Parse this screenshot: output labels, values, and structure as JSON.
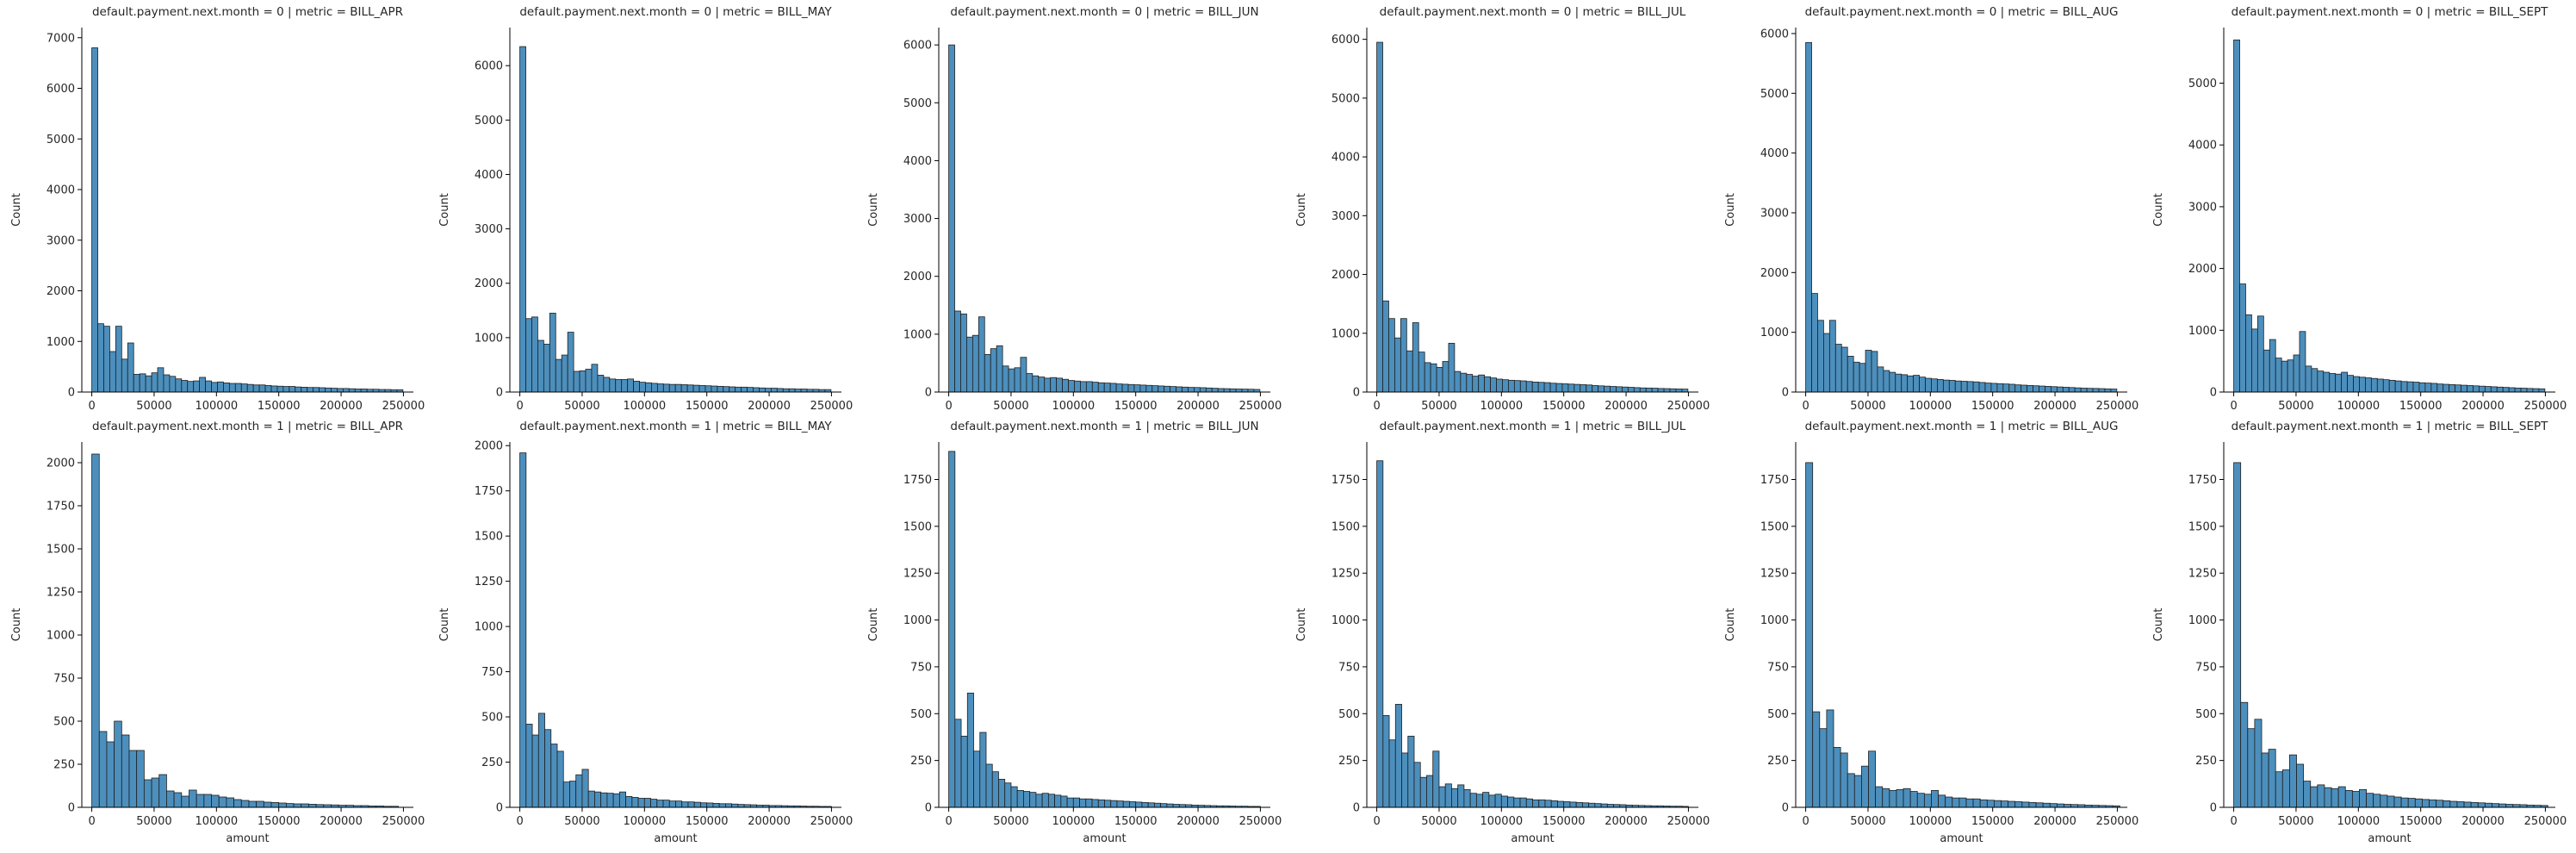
{
  "chart_data": [
    {
      "type": "bar",
      "title": "default.payment.next.month = 0 | metric = BILL_APR",
      "xlabel": "",
      "ylabel": "Count",
      "xlim": [
        -8000,
        258000
      ],
      "xticks": [
        0,
        50000,
        100000,
        150000,
        200000,
        250000
      ],
      "ylim": [
        0,
        7200
      ],
      "yticks": [
        0,
        1000,
        2000,
        3000,
        4000,
        5000,
        6000,
        7000
      ],
      "bin_width": 4800,
      "values": [
        6800,
        1350,
        1300,
        800,
        1300,
        650,
        970,
        350,
        360,
        320,
        380,
        480,
        340,
        310,
        260,
        230,
        210,
        220,
        290,
        220,
        190,
        200,
        180,
        170,
        170,
        160,
        150,
        140,
        140,
        130,
        120,
        115,
        110,
        110,
        100,
        95,
        90,
        90,
        85,
        80,
        75,
        70,
        70,
        65,
        60,
        60,
        55,
        55,
        50,
        50,
        45,
        45
      ]
    },
    {
      "type": "bar",
      "title": "default.payment.next.month = 0 | metric = BILL_MAY",
      "xlabel": "",
      "ylabel": "Count",
      "xlim": [
        -8000,
        258000
      ],
      "xticks": [
        0,
        50000,
        100000,
        150000,
        200000,
        250000
      ],
      "ylim": [
        0,
        6700
      ],
      "yticks": [
        0,
        1000,
        2000,
        3000,
        4000,
        5000,
        6000
      ],
      "bin_width": 4800,
      "values": [
        6350,
        1350,
        1380,
        950,
        880,
        1450,
        600,
        680,
        1100,
        380,
        390,
        420,
        510,
        310,
        270,
        240,
        230,
        230,
        240,
        200,
        180,
        170,
        160,
        150,
        145,
        140,
        140,
        135,
        130,
        125,
        120,
        115,
        110,
        105,
        100,
        95,
        90,
        90,
        85,
        80,
        75,
        70,
        70,
        65,
        60,
        60,
        55,
        55,
        50,
        50,
        45,
        45
      ]
    },
    {
      "type": "bar",
      "title": "default.payment.next.month = 0 | metric = BILL_JUN",
      "xlabel": "",
      "ylabel": "Count",
      "xlim": [
        -8000,
        258000
      ],
      "xticks": [
        0,
        50000,
        100000,
        150000,
        200000,
        250000
      ],
      "ylim": [
        0,
        6300
      ],
      "yticks": [
        0,
        1000,
        2000,
        3000,
        4000,
        5000,
        6000
      ],
      "bin_width": 4800,
      "values": [
        6000,
        1400,
        1350,
        950,
        980,
        1300,
        650,
        750,
        800,
        450,
        400,
        420,
        600,
        320,
        280,
        260,
        240,
        250,
        240,
        220,
        200,
        190,
        180,
        180,
        170,
        160,
        155,
        150,
        140,
        135,
        130,
        125,
        120,
        115,
        110,
        105,
        100,
        95,
        90,
        85,
        80,
        78,
        75,
        70,
        65,
        60,
        58,
        55,
        52,
        50,
        48,
        45
      ]
    },
    {
      "type": "bar",
      "title": "default.payment.next.month = 0 | metric = BILL_JUL",
      "xlabel": "",
      "ylabel": "Count",
      "xlim": [
        -8000,
        258000
      ],
      "xticks": [
        0,
        50000,
        100000,
        150000,
        200000,
        250000
      ],
      "ylim": [
        0,
        6200
      ],
      "yticks": [
        0,
        1000,
        2000,
        3000,
        4000,
        5000,
        6000
      ],
      "bin_width": 4800,
      "values": [
        5950,
        1550,
        1250,
        920,
        1250,
        700,
        1180,
        680,
        500,
        480,
        420,
        520,
        830,
        350,
        320,
        300,
        270,
        290,
        260,
        240,
        220,
        210,
        200,
        195,
        190,
        180,
        170,
        165,
        160,
        150,
        145,
        140,
        135,
        130,
        125,
        120,
        110,
        105,
        100,
        95,
        90,
        85,
        80,
        75,
        70,
        68,
        65,
        60,
        58,
        55,
        52,
        50
      ]
    },
    {
      "type": "bar",
      "title": "default.payment.next.month = 0 | metric = BILL_AUG",
      "xlabel": "",
      "ylabel": "Count",
      "xlim": [
        -8000,
        258000
      ],
      "xticks": [
        0,
        50000,
        100000,
        150000,
        200000,
        250000
      ],
      "ylim": [
        0,
        6100
      ],
      "yticks": [
        0,
        1000,
        2000,
        3000,
        4000,
        5000,
        6000
      ],
      "bin_width": 4800,
      "values": [
        5850,
        1650,
        1200,
        980,
        1200,
        800,
        750,
        600,
        500,
        480,
        700,
        680,
        420,
        360,
        330,
        300,
        290,
        270,
        280,
        250,
        230,
        220,
        210,
        200,
        195,
        185,
        180,
        175,
        170,
        160,
        150,
        145,
        140,
        135,
        130,
        120,
        115,
        110,
        105,
        100,
        95,
        90,
        85,
        80,
        75,
        70,
        65,
        62,
        60,
        57,
        53,
        50
      ]
    },
    {
      "type": "bar",
      "title": "default.payment.next.month = 0 | metric = BILL_SEPT",
      "xlabel": "",
      "ylabel": "Count",
      "xlim": [
        -8000,
        258000
      ],
      "xticks": [
        0,
        50000,
        100000,
        150000,
        200000,
        250000
      ],
      "ylim": [
        0,
        5900
      ],
      "yticks": [
        0,
        1000,
        2000,
        3000,
        4000,
        5000
      ],
      "bin_width": 4800,
      "values": [
        5700,
        1750,
        1250,
        1020,
        1230,
        680,
        850,
        550,
        500,
        520,
        600,
        980,
        420,
        380,
        340,
        320,
        300,
        290,
        320,
        270,
        250,
        240,
        230,
        220,
        210,
        200,
        190,
        180,
        170,
        165,
        160,
        150,
        145,
        140,
        130,
        125,
        120,
        115,
        110,
        105,
        100,
        95,
        90,
        85,
        80,
        75,
        70,
        65,
        62,
        58,
        55,
        52
      ]
    },
    {
      "type": "bar",
      "title": "default.payment.next.month = 1 | metric = BILL_APR",
      "xlabel": "amount",
      "ylabel": "Count",
      "xlim": [
        -8000,
        258000
      ],
      "xticks": [
        0,
        50000,
        100000,
        150000,
        200000,
        250000
      ],
      "ylim": [
        0,
        2120
      ],
      "yticks": [
        0,
        250,
        500,
        750,
        1000,
        1250,
        1500,
        1750,
        2000
      ],
      "bin_width": 6000,
      "values": [
        2050,
        440,
        380,
        500,
        420,
        330,
        330,
        160,
        170,
        190,
        95,
        85,
        65,
        100,
        75,
        75,
        70,
        60,
        55,
        45,
        40,
        35,
        35,
        30,
        28,
        25,
        22,
        20,
        20,
        18,
        16,
        15,
        14,
        12,
        12,
        10,
        10,
        8,
        8,
        6,
        6
      ]
    },
    {
      "type": "bar",
      "title": "default.payment.next.month = 1 | metric = BILL_MAY",
      "xlabel": "amount",
      "ylabel": "Count",
      "xlim": [
        -8000,
        258000
      ],
      "xticks": [
        0,
        50000,
        100000,
        150000,
        200000,
        250000
      ],
      "ylim": [
        0,
        2020
      ],
      "yticks": [
        0,
        250,
        500,
        750,
        1000,
        1250,
        1500,
        1750,
        2000
      ],
      "bin_width": 5000,
      "values": [
        1960,
        460,
        400,
        520,
        430,
        350,
        310,
        140,
        145,
        180,
        210,
        90,
        85,
        80,
        78,
        75,
        85,
        60,
        55,
        50,
        50,
        45,
        40,
        40,
        35,
        35,
        30,
        30,
        28,
        25,
        24,
        22,
        20,
        20,
        18,
        16,
        15,
        14,
        12,
        12,
        10,
        10,
        9,
        8,
        8,
        7,
        6,
        6,
        5,
        5
      ]
    },
    {
      "type": "bar",
      "title": "default.payment.next.month = 1 | metric = BILL_JUN",
      "xlabel": "amount",
      "ylabel": "Count",
      "xlim": [
        -8000,
        258000
      ],
      "xticks": [
        0,
        50000,
        100000,
        150000,
        200000,
        250000
      ],
      "ylim": [
        0,
        1950
      ],
      "yticks": [
        0,
        250,
        500,
        750,
        1000,
        1250,
        1500,
        1750
      ],
      "bin_width": 5000,
      "values": [
        1900,
        470,
        380,
        610,
        300,
        400,
        230,
        190,
        150,
        130,
        110,
        90,
        85,
        80,
        70,
        75,
        70,
        65,
        60,
        50,
        50,
        45,
        45,
        42,
        40,
        38,
        36,
        34,
        32,
        30,
        28,
        26,
        24,
        22,
        20,
        18,
        16,
        15,
        14,
        12,
        11,
        10,
        9,
        8,
        8,
        7,
        6,
        6,
        5,
        5
      ]
    },
    {
      "type": "bar",
      "title": "default.payment.next.month = 1 | metric = BILL_JUL",
      "xlabel": "amount",
      "ylabel": "Count",
      "xlim": [
        -8000,
        258000
      ],
      "xticks": [
        0,
        50000,
        100000,
        150000,
        200000,
        250000
      ],
      "ylim": [
        0,
        1950
      ],
      "yticks": [
        0,
        250,
        500,
        750,
        1000,
        1250,
        1500,
        1750
      ],
      "bin_width": 5000,
      "values": [
        1850,
        490,
        360,
        550,
        290,
        380,
        240,
        160,
        170,
        300,
        110,
        125,
        100,
        120,
        95,
        75,
        70,
        80,
        65,
        70,
        60,
        55,
        50,
        50,
        45,
        40,
        40,
        38,
        35,
        32,
        30,
        28,
        26,
        24,
        22,
        20,
        18,
        16,
        15,
        14,
        12,
        11,
        10,
        9,
        8,
        8,
        7,
        6,
        6,
        5
      ]
    },
    {
      "type": "bar",
      "title": "default.payment.next.month = 1 | metric = BILL_AUG",
      "xlabel": "amount",
      "ylabel": "Count",
      "xlim": [
        -8000,
        258000
      ],
      "xticks": [
        0,
        50000,
        100000,
        150000,
        200000,
        250000
      ],
      "ylim": [
        0,
        1950
      ],
      "yticks": [
        0,
        250,
        500,
        750,
        1000,
        1250,
        1500,
        1750
      ],
      "bin_width": 5600,
      "values": [
        1840,
        510,
        420,
        520,
        320,
        290,
        180,
        170,
        220,
        300,
        110,
        100,
        90,
        95,
        100,
        85,
        75,
        70,
        90,
        65,
        55,
        50,
        50,
        45,
        45,
        40,
        38,
        36,
        34,
        32,
        30,
        28,
        26,
        24,
        22,
        20,
        18,
        16,
        15,
        14,
        12,
        11,
        10,
        9,
        8
      ]
    },
    {
      "type": "bar",
      "title": "default.payment.next.month = 1 | metric = BILL_SEPT",
      "xlabel": "amount",
      "ylabel": "Count",
      "xlim": [
        -8000,
        258000
      ],
      "xticks": [
        0,
        50000,
        100000,
        150000,
        200000,
        250000
      ],
      "ylim": [
        0,
        1950
      ],
      "yticks": [
        0,
        250,
        500,
        750,
        1000,
        1250,
        1500,
        1750
      ],
      "bin_width": 5600,
      "values": [
        1840,
        560,
        420,
        470,
        290,
        310,
        190,
        200,
        280,
        230,
        140,
        110,
        120,
        105,
        100,
        110,
        90,
        85,
        95,
        75,
        70,
        65,
        60,
        55,
        50,
        48,
        45,
        42,
        40,
        38,
        35,
        32,
        30,
        28,
        26,
        24,
        22,
        20,
        18,
        16,
        15,
        14,
        12,
        11,
        10
      ]
    }
  ]
}
